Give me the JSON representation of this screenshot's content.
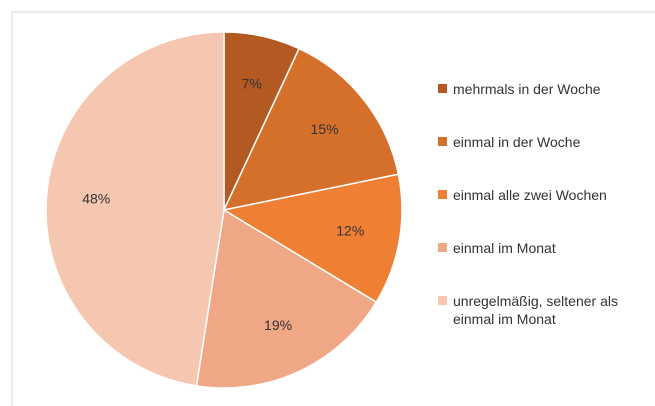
{
  "chart_data": {
    "type": "pie",
    "categories": [
      "mehrmals in der Woche",
      "einmal in der Woche",
      "einmal alle zwei Wochen",
      "einmal im Monat",
      "unregelmäßig, seltener als einmal im Monat"
    ],
    "values": [
      7,
      15,
      12,
      19,
      48
    ],
    "value_labels": [
      "7%",
      "15%",
      "12%",
      "19%",
      "48%"
    ],
    "colors": [
      "#b35a22",
      "#d4702a",
      "#ee7f33",
      "#f0a785",
      "#f5c6b0"
    ],
    "legend": "right"
  }
}
